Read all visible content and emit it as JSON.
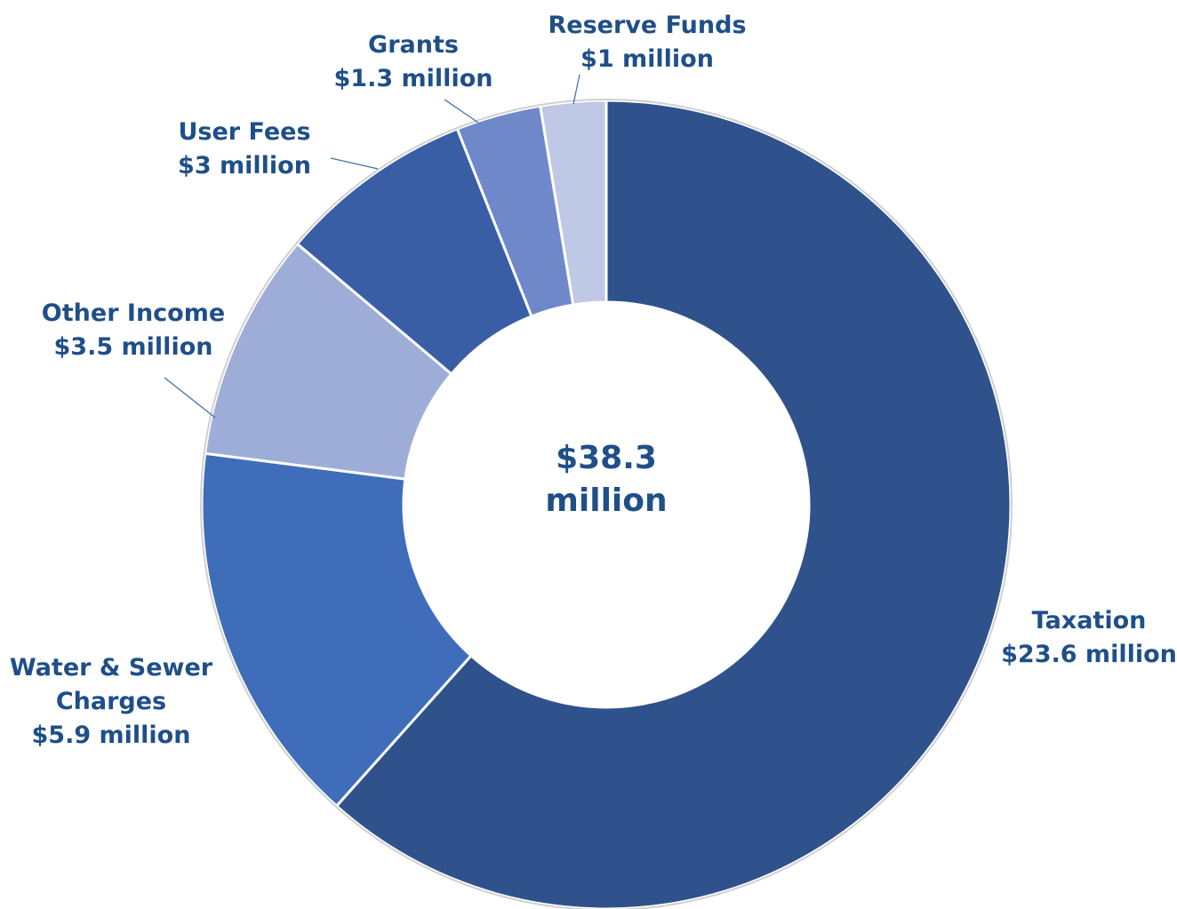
{
  "chart_data": {
    "type": "donut",
    "categories": [
      "Taxation",
      "Water & Sewer Charges",
      "Other Income",
      "User Fees",
      "Grants",
      "Reserve Funds"
    ],
    "values": [
      23.6,
      5.9,
      3.5,
      3,
      1.3,
      1
    ],
    "value_labels": [
      "$23.6 million",
      "$5.9 million",
      "$3.5 million",
      "$3 million",
      "$1.3 million",
      "$1 million"
    ],
    "colors": [
      "#30528c",
      "#3f6dba",
      "#9eadd8",
      "#3a5ea6",
      "#6e88ca",
      "#bfc8e4"
    ],
    "center_text": "$38.3 million"
  }
}
